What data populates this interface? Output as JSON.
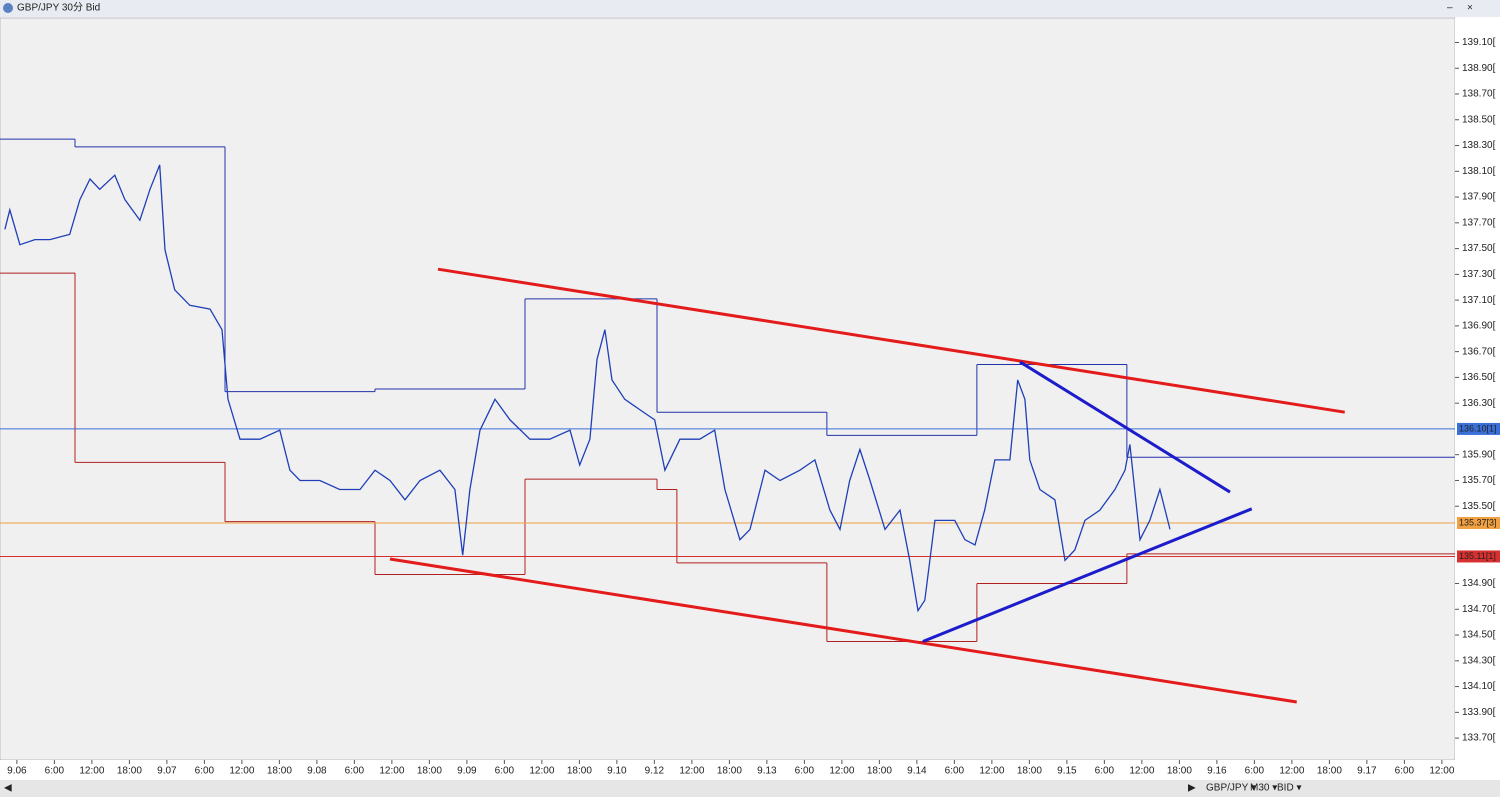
{
  "window": {
    "title": "GBP/JPY 30分 Bid"
  },
  "toolbar": {
    "symbol": "GBP/JPY ▾",
    "period": "M30 ▾",
    "side": "BID ▾"
  },
  "chart_data": {
    "type": "line",
    "xlim": [
      -0.45,
      38.35
    ],
    "ylim": [
      133.53,
      139.29
    ],
    "grid": false,
    "xticks": [
      {
        "value": 0,
        "label": "9.06"
      },
      {
        "value": 1,
        "label": "6:00"
      },
      {
        "value": 2,
        "label": "12:00"
      },
      {
        "value": 3,
        "label": "18:00"
      },
      {
        "value": 4,
        "label": "9.07"
      },
      {
        "value": 5,
        "label": "6:00"
      },
      {
        "value": 6,
        "label": "12:00"
      },
      {
        "value": 7,
        "label": "18:00"
      },
      {
        "value": 8,
        "label": "9.08"
      },
      {
        "value": 9,
        "label": "6:00"
      },
      {
        "value": 10,
        "label": "12:00"
      },
      {
        "value": 11,
        "label": "18:00"
      },
      {
        "value": 12,
        "label": "9.09"
      },
      {
        "value": 13,
        "label": "6:00"
      },
      {
        "value": 14,
        "label": "12:00"
      },
      {
        "value": 15,
        "label": "18:00"
      },
      {
        "value": 16,
        "label": "9.10"
      },
      {
        "value": 17,
        "label": "9.12"
      },
      {
        "value": 18,
        "label": "12:00"
      },
      {
        "value": 19,
        "label": "18:00"
      },
      {
        "value": 20,
        "label": "9.13"
      },
      {
        "value": 21,
        "label": "6:00"
      },
      {
        "value": 22,
        "label": "12:00"
      },
      {
        "value": 23,
        "label": "18:00"
      },
      {
        "value": 24,
        "label": "9.14"
      },
      {
        "value": 25,
        "label": "6:00"
      },
      {
        "value": 26,
        "label": "12:00"
      },
      {
        "value": 27,
        "label": "18:00"
      },
      {
        "value": 28,
        "label": "9.15"
      },
      {
        "value": 29,
        "label": "6:00"
      },
      {
        "value": 30,
        "label": "12:00"
      },
      {
        "value": 31,
        "label": "18:00"
      },
      {
        "value": 32,
        "label": "9.16"
      },
      {
        "value": 33,
        "label": "6:00"
      },
      {
        "value": 34,
        "label": "12:00"
      },
      {
        "value": 35,
        "label": "18:00"
      },
      {
        "value": 36,
        "label": "9.17"
      },
      {
        "value": 37,
        "label": "6:00"
      },
      {
        "value": 38,
        "label": "12:00"
      }
    ],
    "yticks": [
      {
        "value": 133.7,
        "label": "133.70["
      },
      {
        "value": 133.9,
        "label": "133.90["
      },
      {
        "value": 134.1,
        "label": "134.10["
      },
      {
        "value": 134.3,
        "label": "134.30["
      },
      {
        "value": 134.5,
        "label": "134.50["
      },
      {
        "value": 134.7,
        "label": "134.70["
      },
      {
        "value": 134.9,
        "label": "134.90["
      },
      {
        "value": 135.5,
        "label": "135.50["
      },
      {
        "value": 135.7,
        "label": "135.70["
      },
      {
        "value": 135.9,
        "label": "135.90["
      },
      {
        "value": 136.3,
        "label": "136.30["
      },
      {
        "value": 136.5,
        "label": "136.50["
      },
      {
        "value": 136.7,
        "label": "136.70["
      },
      {
        "value": 136.9,
        "label": "136.90["
      },
      {
        "value": 137.1,
        "label": "137.10["
      },
      {
        "value": 137.3,
        "label": "137.30["
      },
      {
        "value": 137.5,
        "label": "137.50["
      },
      {
        "value": 137.7,
        "label": "137.70["
      },
      {
        "value": 137.9,
        "label": "137.90["
      },
      {
        "value": 138.1,
        "label": "138.10["
      },
      {
        "value": 138.3,
        "label": "138.30["
      },
      {
        "value": 138.5,
        "label": "138.50["
      },
      {
        "value": 138.7,
        "label": "138.70["
      },
      {
        "value": 138.9,
        "label": "138.90["
      },
      {
        "value": 139.1,
        "label": "139.10["
      }
    ],
    "series": [
      {
        "color": "#1f3fb8",
        "x": [
          -0.32,
          -0.19,
          0.08,
          0.48,
          0.88,
          1.41,
          1.68,
          1.95,
          2.21,
          2.61,
          2.88,
          3.28,
          3.55,
          3.81,
          3.95,
          4.21,
          4.61,
          5.15,
          5.47,
          5.63,
          5.95,
          6.48,
          7.01,
          7.28,
          7.55,
          8.08,
          8.61,
          9.15,
          9.55,
          9.95,
          10.35,
          10.75,
          11.28,
          11.68,
          11.89,
          12.08,
          12.35,
          12.75,
          13.15,
          13.68,
          14.21,
          14.75,
          15.01,
          15.28,
          15.47,
          15.68,
          15.87,
          16.21,
          16.61,
          17.01,
          17.28,
          17.68,
          18.21,
          18.61,
          18.88,
          19.28,
          19.55,
          19.95,
          20.35,
          20.88,
          21.28,
          21.68,
          21.95,
          22.21,
          22.48,
          22.75,
          23.15,
          23.55,
          23.81,
          24.03,
          24.21,
          24.48,
          25.01,
          25.28,
          25.55,
          25.81,
          26.08,
          26.48,
          26.69,
          26.88,
          27.01,
          27.28,
          27.68,
          27.95,
          28.21,
          28.48,
          28.88,
          29.28,
          29.55,
          29.68,
          29.95,
          30.21,
          30.48,
          30.75
        ],
        "values": [
          137.65,
          137.8,
          137.53,
          137.57,
          137.57,
          137.61,
          137.88,
          138.04,
          137.96,
          138.07,
          137.88,
          137.72,
          137.96,
          138.15,
          137.49,
          137.18,
          137.06,
          137.03,
          136.87,
          136.33,
          136.02,
          136.02,
          136.09,
          135.78,
          135.7,
          135.7,
          135.63,
          135.63,
          135.78,
          135.7,
          135.55,
          135.7,
          135.78,
          135.63,
          135.12,
          135.63,
          136.09,
          136.33,
          136.17,
          136.02,
          136.02,
          136.09,
          135.82,
          136.02,
          136.64,
          136.87,
          136.48,
          136.33,
          136.25,
          136.17,
          135.78,
          136.02,
          136.02,
          136.09,
          135.63,
          135.24,
          135.32,
          135.78,
          135.7,
          135.78,
          135.86,
          135.47,
          135.32,
          135.7,
          135.94,
          135.7,
          135.32,
          135.47,
          135.08,
          134.69,
          134.77,
          135.39,
          135.39,
          135.24,
          135.2,
          135.47,
          135.86,
          135.86,
          136.48,
          136.33,
          135.86,
          135.63,
          135.55,
          135.08,
          135.16,
          135.39,
          135.47,
          135.63,
          135.78,
          135.98,
          135.24,
          135.39,
          135.63,
          135.32
        ]
      }
    ],
    "levels": [
      {
        "color": "#2233aa",
        "x": [
          -0.45,
          1.55,
          5.55,
          9.55,
          13.55,
          17.07,
          21.6,
          25.6,
          29.6
        ],
        "values": [
          138.35,
          138.29,
          136.39,
          136.41,
          137.11,
          136.23,
          136.05,
          136.6,
          135.88
        ]
      },
      {
        "color": "#b02020",
        "x": [
          -0.45,
          1.55,
          5.55,
          9.55,
          13.55,
          17.07,
          17.6,
          21.6,
          25.6,
          29.6
        ],
        "values": [
          137.31,
          135.84,
          135.38,
          134.97,
          135.71,
          135.63,
          135.06,
          134.45,
          134.9,
          135.13
        ]
      }
    ],
    "trendlines": [
      {
        "color": "#e41b1b",
        "x": [
          11.23,
          35.41
        ],
        "values": [
          137.34,
          136.23
        ]
      },
      {
        "color": "#e41b1b",
        "x": [
          9.95,
          34.13
        ],
        "values": [
          135.09,
          133.98
        ]
      },
      {
        "color": "#1c1ccc",
        "x": [
          26.75,
          32.35
        ],
        "values": [
          136.62,
          135.61
        ]
      },
      {
        "color": "#1c1ccc",
        "x": [
          24.16,
          32.93
        ],
        "values": [
          134.45,
          135.48
        ]
      }
    ],
    "price_lines": [
      {
        "label": "136.10[1]",
        "value": 136.1,
        "color": "#3a6fd8"
      },
      {
        "label": "135.37[3]",
        "value": 135.37,
        "color": "#f0a040"
      },
      {
        "label": "135.11[1]",
        "value": 135.11,
        "color": "#d83030"
      }
    ]
  }
}
